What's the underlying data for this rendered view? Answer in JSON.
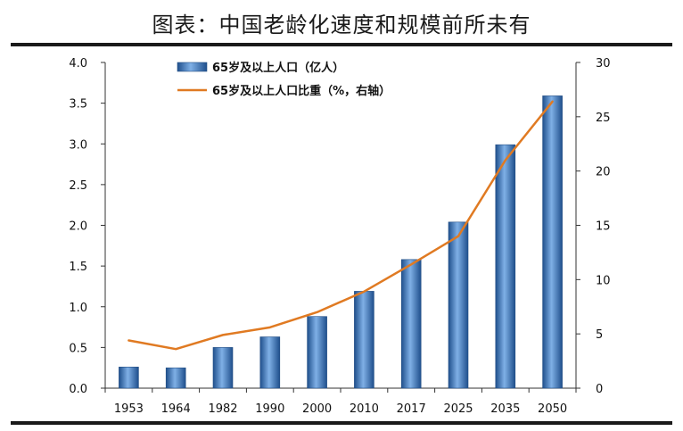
{
  "title": "图表：中国老龄化速度和规模前所未有",
  "colors": {
    "bar": "#3b78c0",
    "line": "#e07a22",
    "rule": "#1a1a1a"
  },
  "chart_data": {
    "type": "bar+line",
    "categories": [
      "1953",
      "1964",
      "1982",
      "1990",
      "2000",
      "2010",
      "2017",
      "2025",
      "2035",
      "2050"
    ],
    "series": [
      {
        "name": "65岁及以上人口（亿人）",
        "type": "bar",
        "axis": "left",
        "values": [
          0.26,
          0.25,
          0.5,
          0.63,
          0.88,
          1.19,
          1.58,
          2.04,
          2.99,
          3.59
        ]
      },
      {
        "name": "65岁及以上人口比重（%，右轴）",
        "type": "line",
        "axis": "right",
        "values": [
          4.4,
          3.6,
          4.9,
          5.6,
          7.0,
          8.9,
          11.4,
          14.0,
          21.0,
          26.4
        ]
      }
    ],
    "y_left": {
      "ticks": [
        "0.0",
        "0.5",
        "1.0",
        "1.5",
        "2.0",
        "2.5",
        "3.0",
        "3.5",
        "4.0"
      ],
      "min": 0,
      "max": 4
    },
    "y_right": {
      "ticks": [
        "0",
        "5",
        "10",
        "15",
        "20",
        "25",
        "30"
      ],
      "min": 0,
      "max": 30
    },
    "legend_position": "top-left"
  }
}
